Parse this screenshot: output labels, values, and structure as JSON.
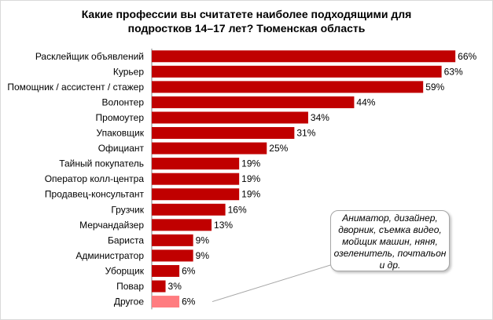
{
  "chart_data": {
    "type": "bar",
    "orientation": "horizontal",
    "title_line1": "Какие профессии вы считатете наиболее подходящими для",
    "title_line2": "подростков 14–17 лет? Тюменская область",
    "categories": [
      "Расклейщик объявлений",
      "Курьер",
      "Помощник / ассистент / стажер",
      "Волонтер",
      "Промоутер",
      "Упаковщик",
      "Официант",
      "Тайный покупатель",
      "Оператор колл-центра",
      "Продавец-консультант",
      "Грузчик",
      "Мерчандайзер",
      "Бариста",
      "Администратор",
      "Уборщик",
      "Повар",
      "Другое"
    ],
    "values": [
      66,
      63,
      59,
      44,
      34,
      31,
      25,
      19,
      19,
      19,
      16,
      13,
      9,
      9,
      6,
      3,
      6
    ],
    "value_labels": [
      "66%",
      "63%",
      "59%",
      "44%",
      "34%",
      "31%",
      "25%",
      "19%",
      "19%",
      "19%",
      "16%",
      "13%",
      "9%",
      "9%",
      "6%",
      "3%",
      "6%"
    ],
    "bar_color": "#c00000",
    "highlight_color": "#ff7c80",
    "highlight_index": 16,
    "xlim": [
      0,
      67
    ],
    "grid": false,
    "annotation": {
      "lines": [
        "Аниматор, дизайнер,",
        "дворник, съемка видео,",
        "мойщик машин, няня,",
        "озеленитель, почтальон",
        "и др."
      ]
    }
  }
}
